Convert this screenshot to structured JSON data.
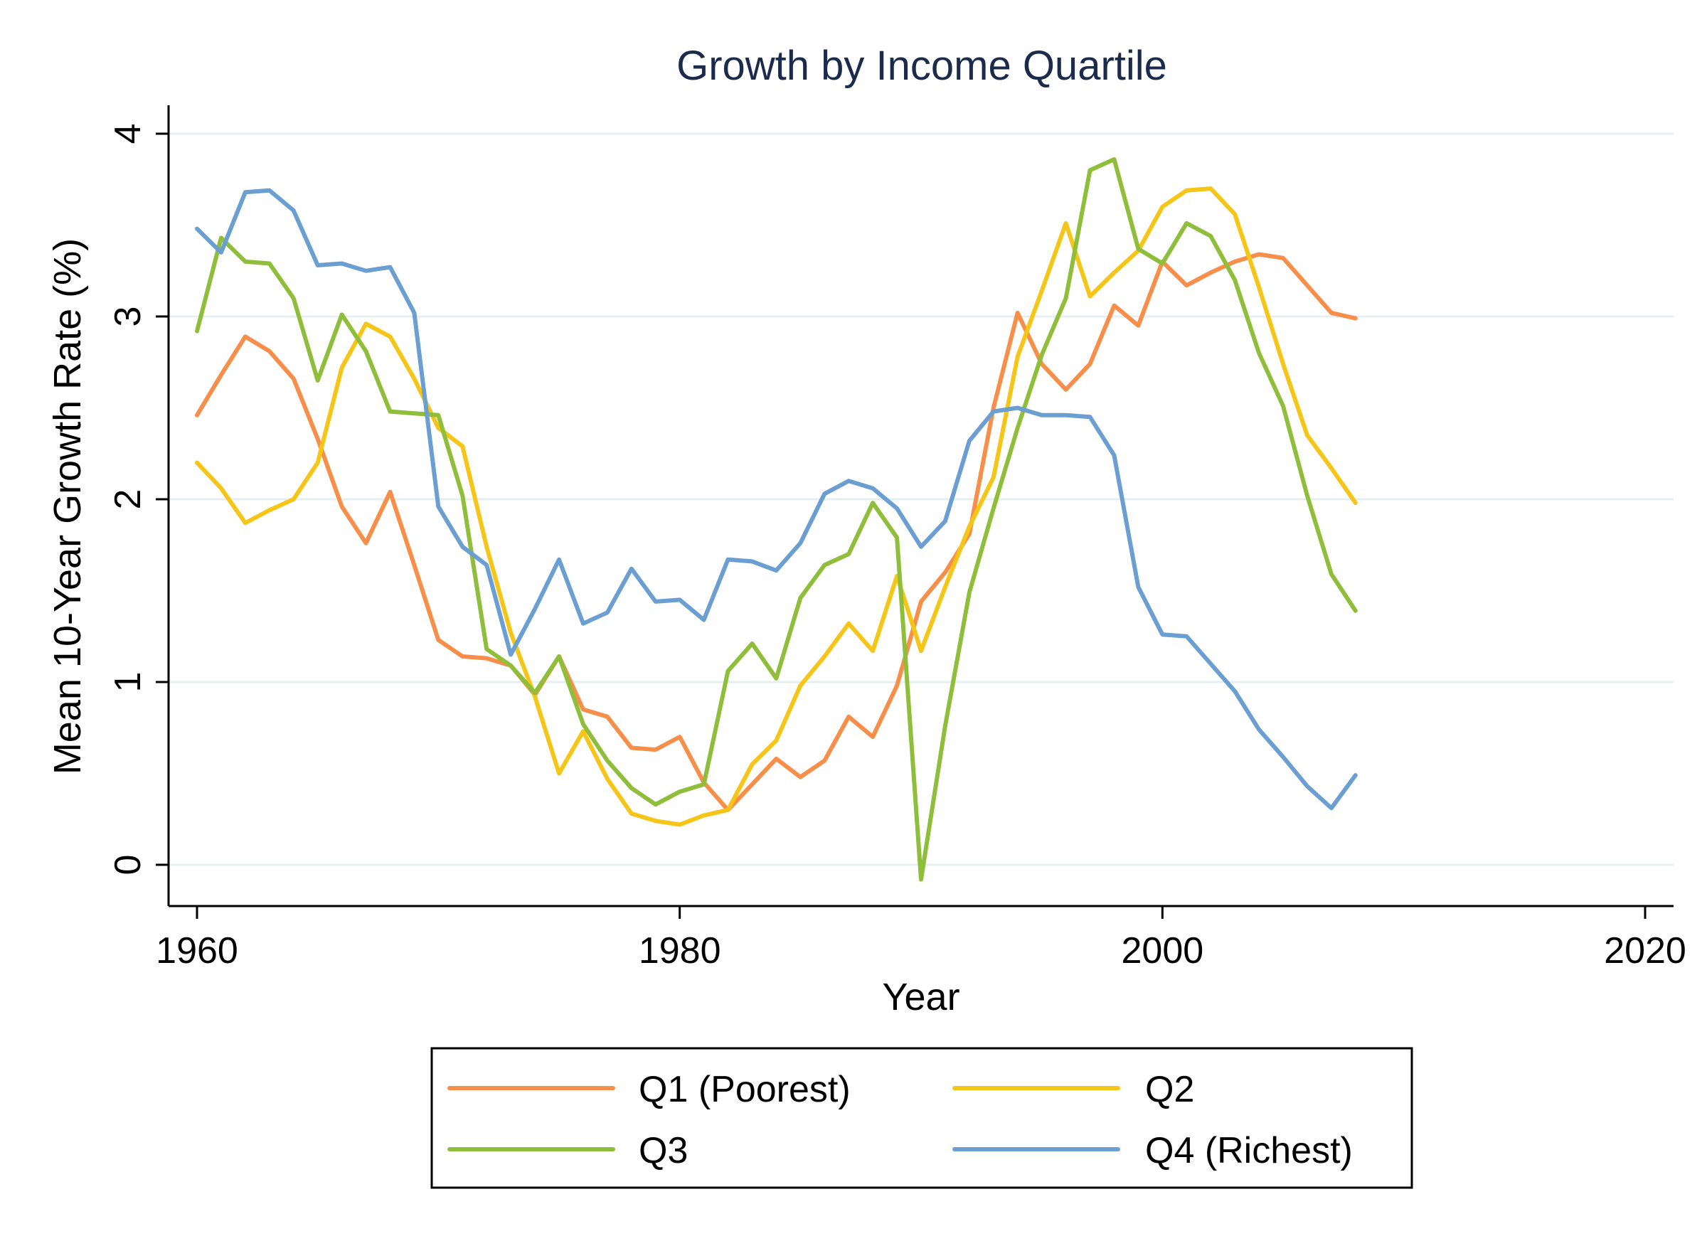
{
  "chart_data": {
    "type": "line",
    "title": "Growth by Income Quartile",
    "xlabel": "Year",
    "ylabel": "Mean 10-Year Growth Rate (%)",
    "xlim": [
      1959,
      2021
    ],
    "ylim": [
      -0.22,
      4.15
    ],
    "xticks": [
      1960,
      1980,
      2000,
      2020
    ],
    "yticks": [
      0,
      1,
      2,
      3,
      4
    ],
    "grid": true,
    "legend_position": "bottom",
    "x": [
      1960,
      1961,
      1962,
      1963,
      1964,
      1965,
      1966,
      1967,
      1968,
      1969,
      1970,
      1971,
      1972,
      1973,
      1974,
      1975,
      1976,
      1977,
      1978,
      1979,
      1980,
      1981,
      1982,
      1983,
      1984,
      1985,
      1986,
      1987,
      1988,
      1989,
      1990,
      1991,
      1992,
      1993,
      1994,
      1995,
      1996,
      1997,
      1998,
      1999,
      2000,
      2001,
      2002,
      2003,
      2004,
      2005,
      2006,
      2007,
      2008
    ],
    "series": [
      {
        "name": "Q1 (Poorest)",
        "color": "#f78f4a",
        "values": [
          2.46,
          2.68,
          2.89,
          2.81,
          2.66,
          2.33,
          1.96,
          1.76,
          2.04,
          1.64,
          1.23,
          1.14,
          1.13,
          1.09,
          0.93,
          1.14,
          0.85,
          0.81,
          0.64,
          0.63,
          0.7,
          0.45,
          0.3,
          0.44,
          0.58,
          0.48,
          0.57,
          0.81,
          0.7,
          0.98,
          1.44,
          1.6,
          1.81,
          2.5,
          3.02,
          2.74,
          2.6,
          2.74,
          3.06,
          2.95,
          3.3,
          3.17,
          3.24,
          3.3,
          3.34,
          3.32,
          3.17,
          3.02,
          2.99
        ]
      },
      {
        "name": "Q2",
        "color": "#f5c518",
        "values": [
          2.2,
          2.06,
          1.87,
          1.94,
          2.0,
          2.2,
          2.72,
          2.96,
          2.89,
          2.66,
          2.39,
          2.29,
          1.74,
          1.27,
          0.92,
          0.5,
          0.73,
          0.47,
          0.28,
          0.24,
          0.22,
          0.27,
          0.3,
          0.55,
          0.68,
          0.98,
          1.14,
          1.32,
          1.17,
          1.58,
          1.17,
          1.52,
          1.85,
          2.12,
          2.78,
          3.14,
          3.51,
          3.11,
          3.24,
          3.36,
          3.6,
          3.69,
          3.7,
          3.56,
          3.16,
          2.74,
          2.35,
          2.17,
          1.98
        ]
      },
      {
        "name": "Q3",
        "color": "#8fbe3a",
        "values": [
          2.92,
          3.43,
          3.3,
          3.29,
          3.1,
          2.65,
          3.01,
          2.81,
          2.48,
          2.47,
          2.46,
          2.02,
          1.18,
          1.09,
          0.94,
          1.14,
          0.77,
          0.57,
          0.42,
          0.33,
          0.4,
          0.44,
          1.06,
          1.21,
          1.02,
          1.46,
          1.64,
          1.7,
          1.98,
          1.79,
          -0.08,
          0.76,
          1.49,
          1.95,
          2.39,
          2.79,
          3.1,
          3.8,
          3.86,
          3.37,
          3.29,
          3.51,
          3.44,
          3.2,
          2.8,
          2.51,
          2.02,
          1.59,
          1.39
        ]
      },
      {
        "name": "Q4 (Richest)",
        "color": "#6b9fd1",
        "values": [
          3.48,
          3.35,
          3.68,
          3.69,
          3.58,
          3.28,
          3.29,
          3.25,
          3.27,
          3.02,
          1.96,
          1.74,
          1.64,
          1.15,
          1.4,
          1.67,
          1.32,
          1.38,
          1.62,
          1.44,
          1.45,
          1.34,
          1.67,
          1.66,
          1.61,
          1.76,
          2.03,
          2.1,
          2.06,
          1.95,
          1.74,
          1.88,
          2.32,
          2.48,
          2.5,
          2.46,
          2.46,
          2.45,
          2.24,
          1.52,
          1.26,
          1.25,
          1.1,
          0.95,
          0.74,
          0.59,
          0.43,
          0.31,
          0.49
        ]
      }
    ]
  }
}
